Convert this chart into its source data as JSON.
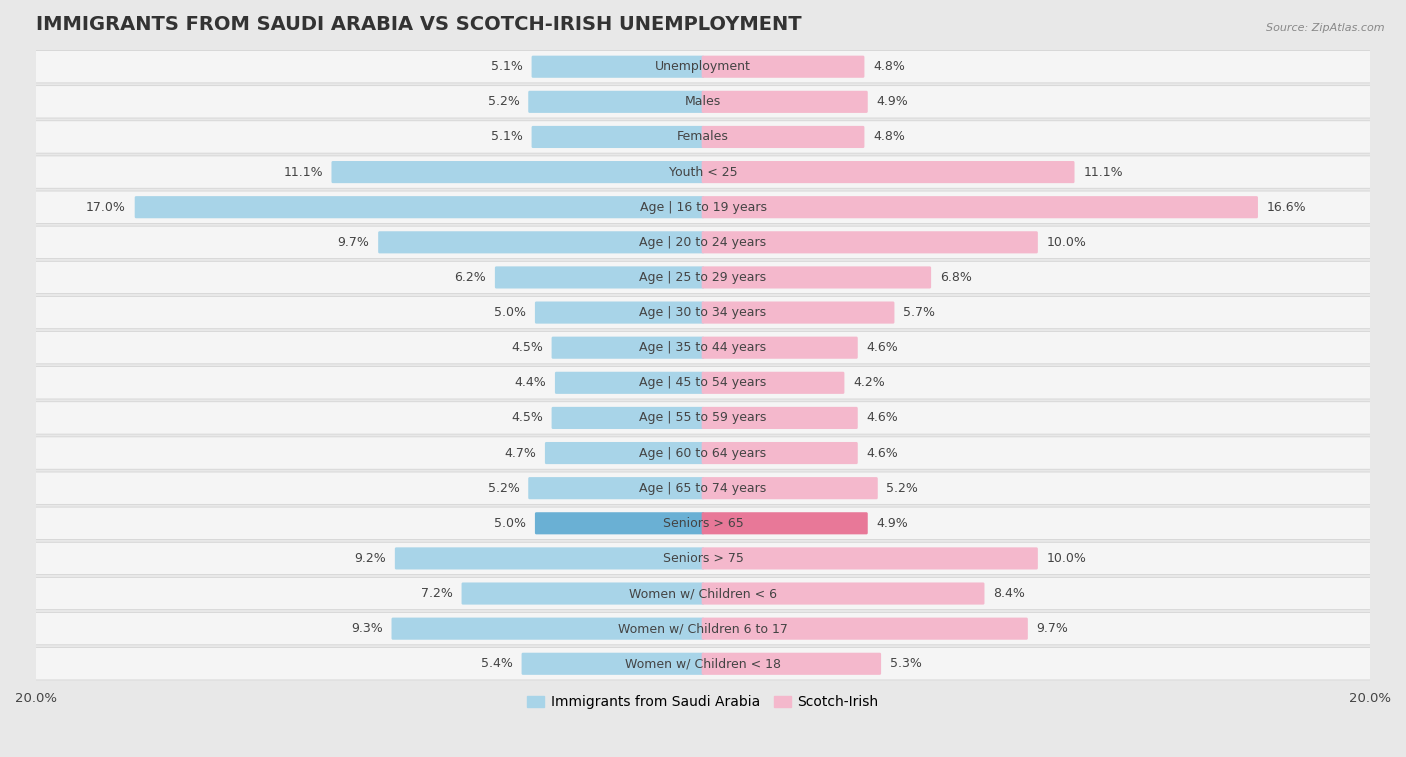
{
  "title": "IMMIGRANTS FROM SAUDI ARABIA VS SCOTCH-IRISH UNEMPLOYMENT",
  "source": "Source: ZipAtlas.com",
  "categories": [
    "Unemployment",
    "Males",
    "Females",
    "Youth < 25",
    "Age | 16 to 19 years",
    "Age | 20 to 24 years",
    "Age | 25 to 29 years",
    "Age | 30 to 34 years",
    "Age | 35 to 44 years",
    "Age | 45 to 54 years",
    "Age | 55 to 59 years",
    "Age | 60 to 64 years",
    "Age | 65 to 74 years",
    "Seniors > 65",
    "Seniors > 75",
    "Women w/ Children < 6",
    "Women w/ Children 6 to 17",
    "Women w/ Children < 18"
  ],
  "left_values": [
    5.1,
    5.2,
    5.1,
    11.1,
    17.0,
    9.7,
    6.2,
    5.0,
    4.5,
    4.4,
    4.5,
    4.7,
    5.2,
    5.0,
    9.2,
    7.2,
    9.3,
    5.4
  ],
  "right_values": [
    4.8,
    4.9,
    4.8,
    11.1,
    16.6,
    10.0,
    6.8,
    5.7,
    4.6,
    4.2,
    4.6,
    4.6,
    5.2,
    4.9,
    10.0,
    8.4,
    9.7,
    5.3
  ],
  "left_color": "#a8d4e8",
  "right_color": "#f4b8cc",
  "left_highlight_color": "#6ab0d4",
  "right_highlight_color": "#e87898",
  "highlight_row_idx": 4,
  "axis_max": 20.0,
  "left_label": "Immigrants from Saudi Arabia",
  "right_label": "Scotch-Irish",
  "bg_color": "#e8e8e8",
  "row_bg_color": "#f5f5f5",
  "row_border_color": "#d0d0d0",
  "title_fontsize": 14,
  "label_fontsize": 9,
  "value_fontsize": 9,
  "tick_fontsize": 9.5
}
